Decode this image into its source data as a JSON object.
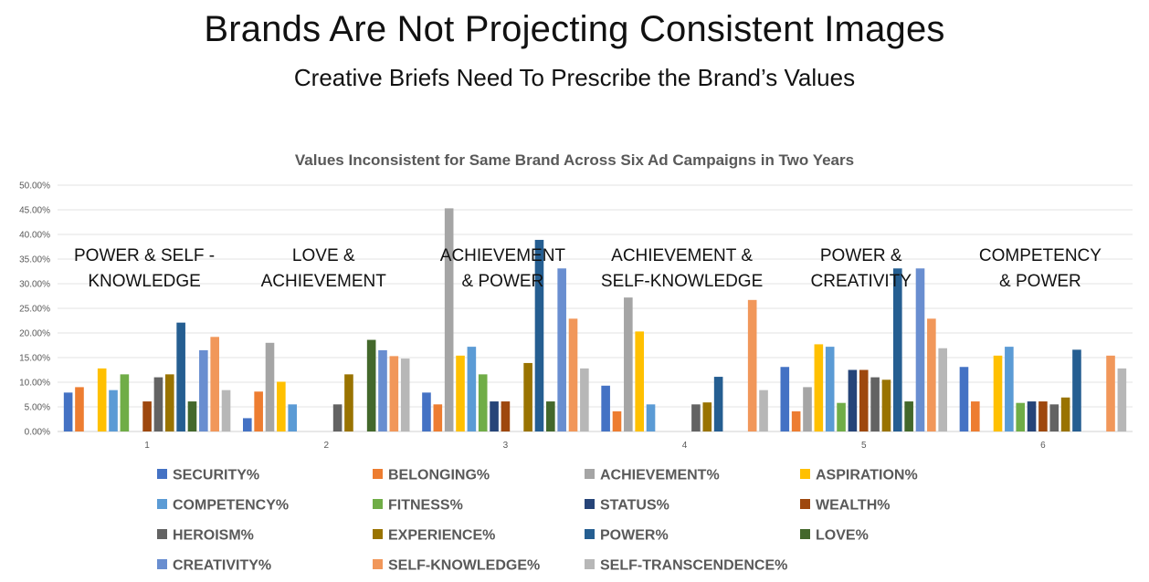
{
  "slide": {
    "title": "Brands Are Not Projecting Consistent Images",
    "subtitle": "Creative Briefs Need To Prescribe the Brand’s Values"
  },
  "chart_data": {
    "type": "bar",
    "title": "Values Inconsistent for Same Brand Across Six Ad Campaigns in Two Years",
    "xlabel": "",
    "ylabel": "",
    "ylim": [
      0,
      0.5
    ],
    "yticks": [
      "0.00%",
      "5.00%",
      "10.00%",
      "15.00%",
      "20.00%",
      "25.00%",
      "30.00%",
      "35.00%",
      "40.00%",
      "45.00%",
      "50.00%"
    ],
    "grid": true,
    "legend_position": "bottom",
    "categories": [
      "1",
      "2",
      "3",
      "4",
      "5",
      "6"
    ],
    "annotations": [
      [
        "POWER & SELF -",
        "KNOWLEDGE"
      ],
      [
        "LOVE &",
        "ACHIEVEMENT"
      ],
      [
        "ACHIEVEMENT",
        "& POWER"
      ],
      [
        "ACHIEVEMENT &",
        "SELF-KNOWLEDGE"
      ],
      [
        "POWER &",
        "CREATIVITY"
      ],
      [
        "COMPETENCY",
        "& POWER"
      ]
    ],
    "series": [
      {
        "name": "SECURITY%",
        "color": "#4472C4",
        "values": [
          0.079,
          0.027,
          0.079,
          0.093,
          0.131,
          0.131
        ]
      },
      {
        "name": "BELONGING%",
        "color": "#ED7D31",
        "values": [
          0.09,
          0.081,
          0.055,
          0.041,
          0.041,
          0.061
        ]
      },
      {
        "name": "ACHIEVEMENT%",
        "color": "#A5A5A5",
        "values": [
          0,
          0.18,
          0.453,
          0.272,
          0.09,
          0
        ]
      },
      {
        "name": "ASPIRATION%",
        "color": "#FFC000",
        "values": [
          0.128,
          0.101,
          0.154,
          0.203,
          0.177,
          0.154
        ]
      },
      {
        "name": "COMPETENCY%",
        "color": "#5B9BD5",
        "values": [
          0.084,
          0.055,
          0.172,
          0.055,
          0.172,
          0.172
        ]
      },
      {
        "name": "FITNESS%",
        "color": "#70AD47",
        "values": [
          0.116,
          0,
          0.116,
          0,
          0.058,
          0.058
        ]
      },
      {
        "name": "STATUS%",
        "color": "#264478",
        "values": [
          0,
          0,
          0.061,
          0,
          0.125,
          0.061
        ]
      },
      {
        "name": "WEALTH%",
        "color": "#9E480E",
        "values": [
          0.061,
          0,
          0.061,
          0,
          0.125,
          0.061
        ]
      },
      {
        "name": "HEROISM%",
        "color": "#636363",
        "values": [
          0.11,
          0.055,
          0,
          0.055,
          0.11,
          0.055
        ]
      },
      {
        "name": "EXPERIENCE%",
        "color": "#997300",
        "values": [
          0.116,
          0.116,
          0.139,
          0.059,
          0.105,
          0.069
        ]
      },
      {
        "name": "POWER%",
        "color": "#255E91",
        "values": [
          0.221,
          0,
          0.389,
          0.111,
          0.331,
          0.166
        ]
      },
      {
        "name": "LOVE%",
        "color": "#43682B",
        "values": [
          0.061,
          0.186,
          0.061,
          0,
          0.061,
          0
        ]
      },
      {
        "name": "CREATIVITY%",
        "color": "#698ED0",
        "values": [
          0.165,
          0.165,
          0.331,
          0,
          0.331,
          0
        ]
      },
      {
        "name": "SELF-KNOWLEDGE%",
        "color": "#F1975A",
        "values": [
          0.192,
          0.153,
          0.229,
          0.267,
          0.229,
          0.154
        ]
      },
      {
        "name": "SELF-TRANSCENDENCE%",
        "color": "#B7B7B7",
        "values": [
          0.084,
          0.148,
          0.128,
          0.084,
          0.169,
          0.128
        ]
      }
    ]
  }
}
